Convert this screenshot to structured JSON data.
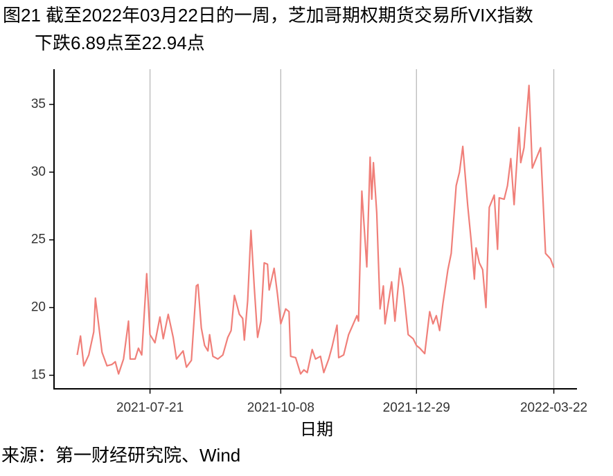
{
  "chart_data": {
    "type": "line",
    "title_lines": [
      "图21  截至2022年03月22日的一周，芝加哥期权期货交易所VIX指数",
      "下跌6.89点至22.94点"
    ],
    "x_label": "日期",
    "source": "来源：第一财经研究院、Wind",
    "xlim": [
      "2021-05-24",
      "2022-04-05"
    ],
    "xticks": [
      "2021-07-21",
      "2021-10-08",
      "2021-12-29",
      "2022-03-22"
    ],
    "ylim": [
      14,
      37.6
    ],
    "yticks": [
      15,
      20,
      25,
      30,
      35
    ],
    "grid": "x",
    "x": [
      "2021-06-07",
      "2021-06-09",
      "2021-06-11",
      "2021-06-14",
      "2021-06-17",
      "2021-06-18",
      "2021-06-22",
      "2021-06-25",
      "2021-06-28",
      "2021-06-30",
      "2021-07-02",
      "2021-07-05",
      "2021-07-08",
      "2021-07-09",
      "2021-07-12",
      "2021-07-14",
      "2021-07-16",
      "2021-07-19",
      "2021-07-21",
      "2021-07-24",
      "2021-07-27",
      "2021-07-29",
      "2021-08-01",
      "2021-08-04",
      "2021-08-06",
      "2021-08-10",
      "2021-08-12",
      "2021-08-15",
      "2021-08-18",
      "2021-08-19",
      "2021-08-21",
      "2021-08-23",
      "2021-08-25",
      "2021-08-26",
      "2021-08-28",
      "2021-08-31",
      "2021-09-03",
      "2021-09-06",
      "2021-09-08",
      "2021-09-10",
      "2021-09-13",
      "2021-09-15",
      "2021-09-16",
      "2021-09-18",
      "2021-09-20",
      "2021-09-22",
      "2021-09-24",
      "2021-09-26",
      "2021-09-28",
      "2021-09-30",
      "2021-10-01",
      "2021-10-04",
      "2021-10-06",
      "2021-10-08",
      "2021-10-11",
      "2021-10-13",
      "2021-10-14",
      "2021-10-17",
      "2021-10-20",
      "2021-10-22",
      "2021-10-24",
      "2021-10-27",
      "2021-10-29",
      "2021-11-01",
      "2021-11-03",
      "2021-11-06",
      "2021-11-08",
      "2021-11-11",
      "2021-11-12",
      "2021-11-15",
      "2021-11-18",
      "2021-11-23",
      "2021-11-24",
      "2021-11-26",
      "2021-11-29",
      "2021-12-01",
      "2021-12-02",
      "2021-12-03",
      "2021-12-05",
      "2021-12-07",
      "2021-12-09",
      "2021-12-10",
      "2021-12-14",
      "2021-12-16",
      "2021-12-19",
      "2021-12-21",
      "2021-12-24",
      "2021-12-27",
      "2021-12-29",
      "2021-12-31",
      "2022-01-03",
      "2022-01-06",
      "2022-01-08",
      "2022-01-10",
      "2022-01-12",
      "2022-01-14",
      "2022-01-17",
      "2022-01-19",
      "2022-01-22",
      "2022-01-24",
      "2022-01-26",
      "2022-01-29",
      "2022-01-31",
      "2022-02-02",
      "2022-02-03",
      "2022-02-05",
      "2022-02-07",
      "2022-02-09",
      "2022-02-11",
      "2022-02-14",
      "2022-02-16",
      "2022-02-17",
      "2022-02-20",
      "2022-02-22",
      "2022-02-24",
      "2022-02-26",
      "2022-03-01",
      "2022-03-02",
      "2022-03-04",
      "2022-03-07",
      "2022-03-09",
      "2022-03-14",
      "2022-03-17",
      "2022-03-20",
      "2022-03-22"
    ],
    "series": [
      {
        "name": "VIX",
        "color": "#f07f79",
        "values": [
          16.5,
          17.9,
          15.7,
          16.5,
          18.2,
          20.7,
          16.7,
          15.7,
          15.8,
          16.0,
          15.1,
          16.2,
          19.0,
          16.2,
          16.2,
          17.0,
          16.5,
          22.5,
          18.0,
          17.4,
          19.3,
          17.7,
          19.5,
          17.8,
          16.2,
          16.8,
          15.6,
          16.1,
          21.6,
          21.7,
          18.5,
          17.2,
          16.8,
          18.0,
          16.4,
          16.2,
          16.5,
          17.8,
          18.3,
          20.9,
          19.5,
          19.2,
          17.6,
          20.5,
          25.7,
          21.5,
          17.8,
          19.0,
          23.3,
          23.2,
          21.3,
          22.9,
          21.0,
          18.8,
          19.9,
          19.7,
          16.4,
          16.3,
          15.1,
          15.4,
          15.2,
          16.9,
          16.2,
          16.4,
          15.2,
          16.2,
          17.1,
          18.7,
          16.3,
          16.5,
          18.0,
          19.4,
          19.0,
          28.6,
          23.0,
          31.1,
          28.0,
          30.7,
          27.0,
          19.9,
          21.6,
          18.8,
          21.9,
          19.0,
          22.9,
          21.5,
          18.0,
          17.7,
          17.2,
          17.0,
          16.6,
          19.7,
          18.8,
          19.4,
          18.3,
          20.3,
          22.8,
          24.0,
          29.0,
          30.0,
          31.9,
          27.5,
          25.0,
          22.1,
          24.4,
          23.3,
          22.8,
          20.0,
          27.4,
          28.3,
          24.3,
          28.1,
          28.0,
          29.0,
          31.0,
          27.6,
          33.3,
          30.7,
          31.8,
          36.4,
          30.3,
          31.8,
          24.0,
          23.6,
          22.94
        ]
      }
    ]
  }
}
